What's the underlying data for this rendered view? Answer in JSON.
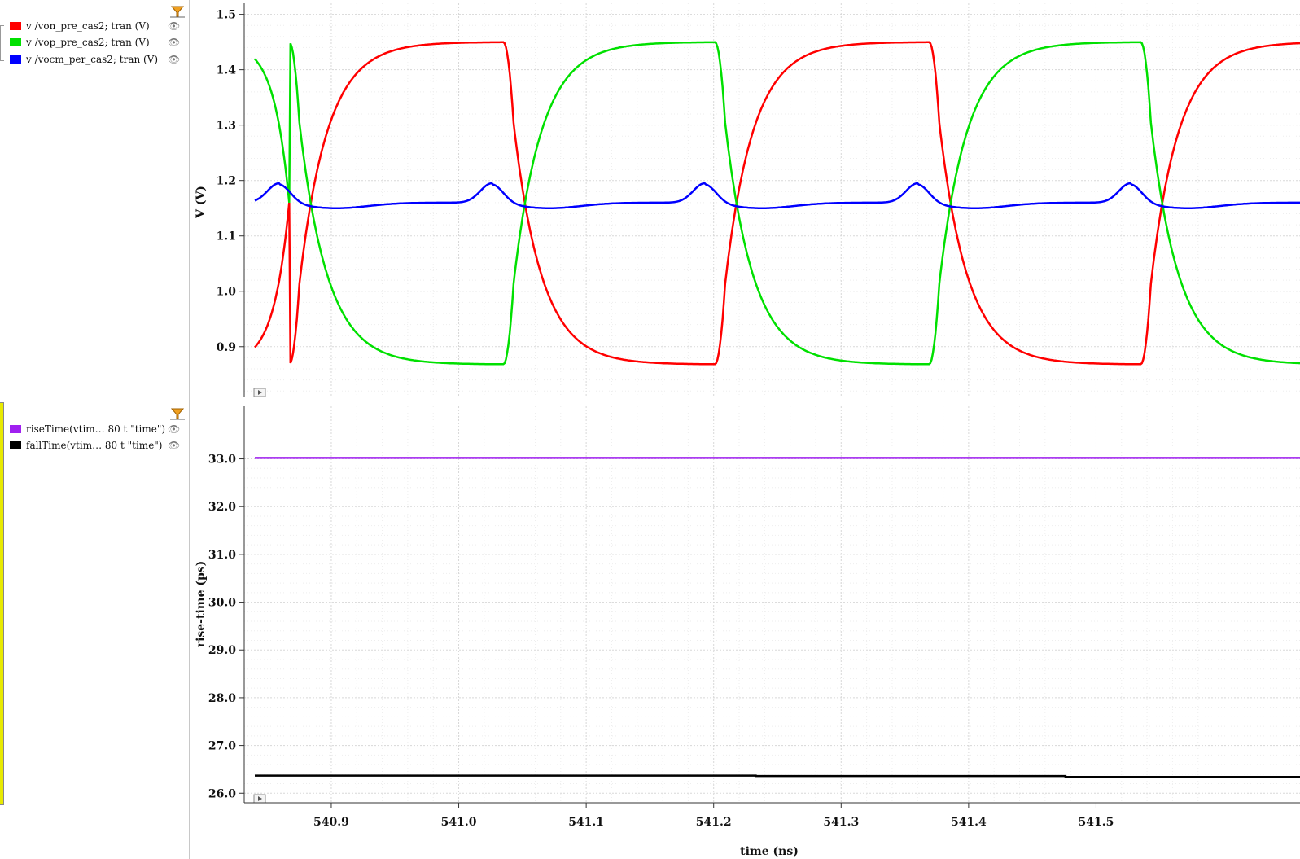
{
  "legend_top": [
    {
      "label": "v /von_pre_cas2; tran (V)",
      "color": "#ff0000"
    },
    {
      "label": "v /vop_pre_cas2; tran (V)",
      "color": "#00e000"
    },
    {
      "label": "v /vocm_per_cas2; tran (V)",
      "color": "#0000ff"
    }
  ],
  "legend_bottom": [
    {
      "label": "riseTime(vtim… 80 t \"time\")",
      "color": "#a020f0"
    },
    {
      "label": "fallTime(vtim… 80 t \"time\")",
      "color": "#000000"
    }
  ],
  "icons": {
    "eye": "eye-icon",
    "filter": "filter-icon",
    "play": "play-icon"
  },
  "chart_data": [
    {
      "type": "line",
      "ylabel": "V (V)",
      "xlim": [
        540.84,
        541.66
      ],
      "ylim": [
        0.81,
        1.52
      ],
      "yticks": [
        "1.5",
        "1.4",
        "1.3",
        "1.2",
        "1.1",
        "1.0",
        "0.9"
      ],
      "grid": true,
      "series": [
        {
          "name": "v /von_pre_cas2; tran (V)",
          "color": "#ff0000",
          "kind": "square",
          "high": 1.45,
          "low": 0.868,
          "start": "low",
          "transitions": [
            540.867,
            541.035,
            541.201,
            541.369,
            541.535
          ],
          "tau": 0.022
        },
        {
          "name": "v /vop_pre_cas2; tran (V)",
          "color": "#00e000",
          "kind": "square",
          "high": 1.45,
          "low": 0.868,
          "start": "high",
          "transitions": [
            540.867,
            541.035,
            541.201,
            541.369,
            541.535
          ],
          "tau": 0.022
        },
        {
          "name": "v /vocm_per_cas2; tran (V)",
          "color": "#0000ff",
          "kind": "cm",
          "base": 1.16,
          "peak": 1.195,
          "dip": 1.15,
          "peaks": [
            540.859,
            541.026,
            541.193,
            541.36,
            541.527
          ]
        }
      ]
    },
    {
      "type": "line",
      "ylabel": "rise-time (ps)",
      "xlabel": "time (ns)",
      "xlim": [
        540.84,
        541.66
      ],
      "ylim": [
        25.8,
        34.1
      ],
      "yticks": [
        "33.0",
        "32.0",
        "31.0",
        "30.0",
        "29.0",
        "28.0",
        "27.0",
        "26.0"
      ],
      "xticks": [
        "540.9",
        "541.0",
        "541.1",
        "541.2",
        "541.3",
        "541.4",
        "541.5"
      ],
      "grid": true,
      "series": [
        {
          "name": "riseTime(vtim… 80 t \"time\")",
          "color": "#a020f0",
          "x": [
            540.84,
            541.66
          ],
          "y": [
            33.02,
            33.02
          ]
        },
        {
          "name": "fallTime(vtim… 80 t \"time\")",
          "color": "#000000",
          "x": [
            540.84,
            541.233,
            541.233,
            541.476,
            541.476,
            541.66
          ],
          "y": [
            26.37,
            26.37,
            26.36,
            26.36,
            26.34,
            26.34
          ]
        }
      ]
    }
  ]
}
